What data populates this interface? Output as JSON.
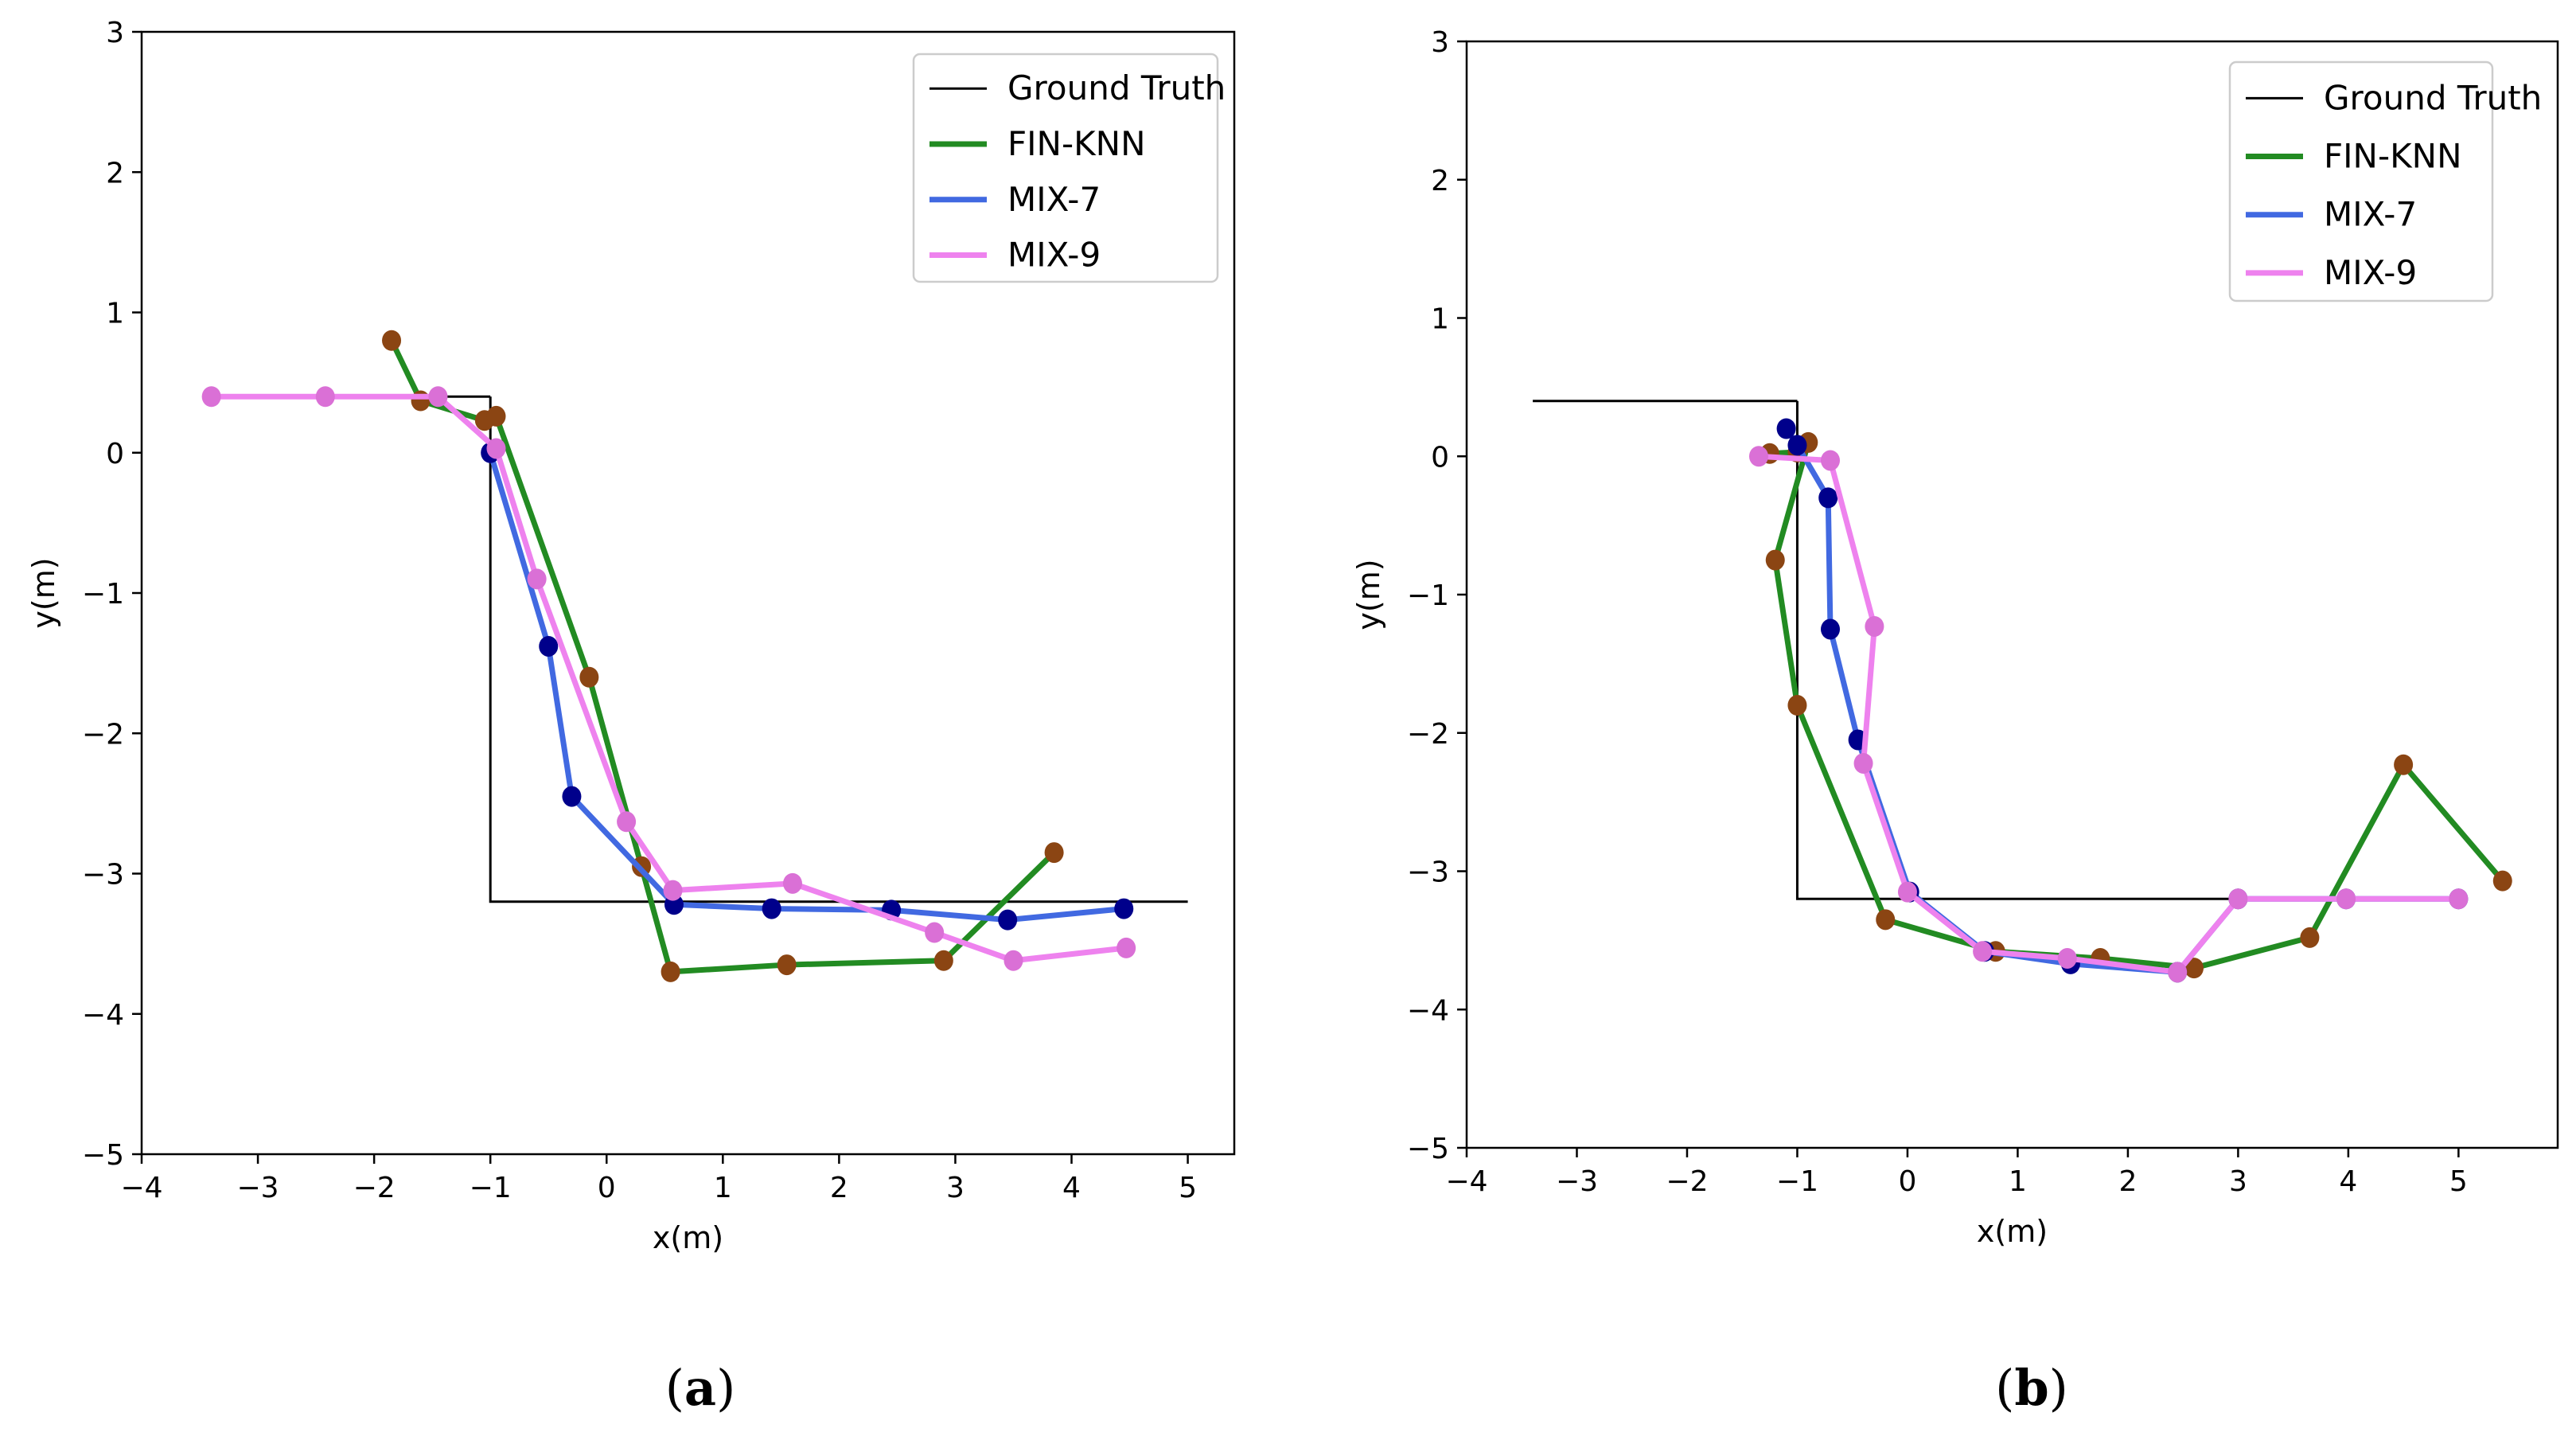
{
  "chart_data": [
    {
      "type": "line",
      "caption": "a",
      "xlabel": "x(m)",
      "ylabel": "y(m)",
      "xlim": [
        -4,
        5.4
      ],
      "ylim": [
        -5,
        3
      ],
      "xticks": [
        -4,
        -3,
        -2,
        -1,
        0,
        1,
        2,
        3,
        4,
        5
      ],
      "xtick_labels": [
        "−4",
        "−3",
        "−2",
        "−1",
        "0",
        "1",
        "2",
        "3",
        "4",
        "5"
      ],
      "yticks": [
        -5,
        -4,
        -3,
        -2,
        -1,
        0,
        1,
        2,
        3
      ],
      "ytick_labels": [
        "−5",
        "−4",
        "−3",
        "−2",
        "−1",
        "0",
        "1",
        "2",
        "3"
      ],
      "legend_position": "top-right",
      "series": [
        {
          "name": "Ground Truth",
          "color": "#000000",
          "markers": false,
          "x": [
            -1,
            -1,
            5
          ],
          "y": [
            0.4,
            -3.2,
            -3.2
          ],
          "extra": {
            "x": [
              -3.4,
              -1
            ],
            "y": [
              0.4,
              0.4
            ]
          }
        },
        {
          "name": "FIN-KNN",
          "color": "#228B22",
          "markers": true,
          "marker_color": "#8B4513",
          "x": [
            -1.85,
            -1.6,
            -1.05,
            -0.95,
            -0.15,
            0.3,
            0.55,
            1.55,
            2.9,
            3.85
          ],
          "y": [
            0.8,
            0.37,
            0.23,
            0.26,
            -1.6,
            -2.95,
            -3.7,
            -3.65,
            -3.62,
            -2.85
          ]
        },
        {
          "name": "MIX-7",
          "color": "#4169E1",
          "markers": true,
          "marker_color": "#00008B",
          "x": [
            -1.0,
            -0.5,
            -0.3,
            0.58,
            1.42,
            2.45,
            3.45,
            4.45
          ],
          "y": [
            0.0,
            -1.38,
            -2.45,
            -3.22,
            -3.25,
            -3.26,
            -3.33,
            -3.25
          ]
        },
        {
          "name": "MIX-9",
          "color": "#EE82EE",
          "markers": true,
          "marker_color": "#DA70D6",
          "x": [
            -3.4,
            -2.42,
            -1.45,
            -0.95,
            -0.6,
            0.17,
            0.57,
            1.6,
            2.82,
            3.5,
            4.47
          ],
          "y": [
            0.4,
            0.4,
            0.4,
            0.03,
            -0.9,
            -2.63,
            -3.12,
            -3.07,
            -3.42,
            -3.62,
            -3.53
          ]
        }
      ]
    },
    {
      "type": "line",
      "caption": "b",
      "xlabel": "x(m)",
      "ylabel": "y(m)",
      "xlim": [
        -4,
        5.9
      ],
      "ylim": [
        -5,
        3
      ],
      "xticks": [
        -4,
        -3,
        -2,
        -1,
        0,
        1,
        2,
        3,
        4,
        5
      ],
      "xtick_labels": [
        "−4",
        "−3",
        "−2",
        "−1",
        "0",
        "1",
        "2",
        "3",
        "4",
        "5"
      ],
      "yticks": [
        -5,
        -4,
        -3,
        -2,
        -1,
        0,
        1,
        2,
        3
      ],
      "ytick_labels": [
        "−5",
        "−4",
        "−3",
        "−2",
        "−1",
        "0",
        "1",
        "2",
        "3"
      ],
      "legend_position": "top-right",
      "series": [
        {
          "name": "Ground Truth",
          "color": "#000000",
          "markers": false,
          "x": [
            -1,
            -1,
            3
          ],
          "y": [
            0.4,
            -3.2,
            -3.2
          ],
          "extra": {
            "x": [
              -3.4,
              -1
            ],
            "y": [
              0.4,
              0.4
            ]
          }
        },
        {
          "name": "FIN-KNN",
          "color": "#228B22",
          "markers": true,
          "marker_color": "#8B4513",
          "x": [
            -1.25,
            -1.0,
            -0.9,
            -1.2,
            -1.0,
            -0.2,
            0.8,
            1.75,
            2.6,
            3.65,
            4.5,
            5.4
          ],
          "y": [
            0.02,
            0.03,
            0.1,
            -0.75,
            -1.8,
            -3.35,
            -3.58,
            -3.63,
            -3.7,
            -3.48,
            -2.23,
            -3.07
          ]
        },
        {
          "name": "MIX-7",
          "color": "#4169E1",
          "markers": true,
          "marker_color": "#00008B",
          "x": [
            -1.1,
            -1.0,
            -0.72,
            -0.7,
            -0.45,
            0.02,
            0.7,
            1.48,
            2.45,
            3.0,
            3.98,
            5.0
          ],
          "y": [
            0.2,
            0.08,
            -0.3,
            -1.25,
            -2.05,
            -3.15,
            -3.58,
            -3.67,
            -3.73,
            -3.2,
            -3.2,
            -3.2
          ]
        },
        {
          "name": "MIX-9",
          "color": "#EE82EE",
          "markers": true,
          "marker_color": "#DA70D6",
          "x": [
            -1.35,
            -0.7,
            -0.3,
            -0.4,
            0.0,
            0.68,
            1.45,
            2.45,
            3.0,
            3.98,
            5.0
          ],
          "y": [
            0.0,
            -0.03,
            -1.23,
            -2.22,
            -3.15,
            -3.58,
            -3.63,
            -3.73,
            -3.2,
            -3.2,
            -3.2
          ]
        }
      ]
    }
  ]
}
